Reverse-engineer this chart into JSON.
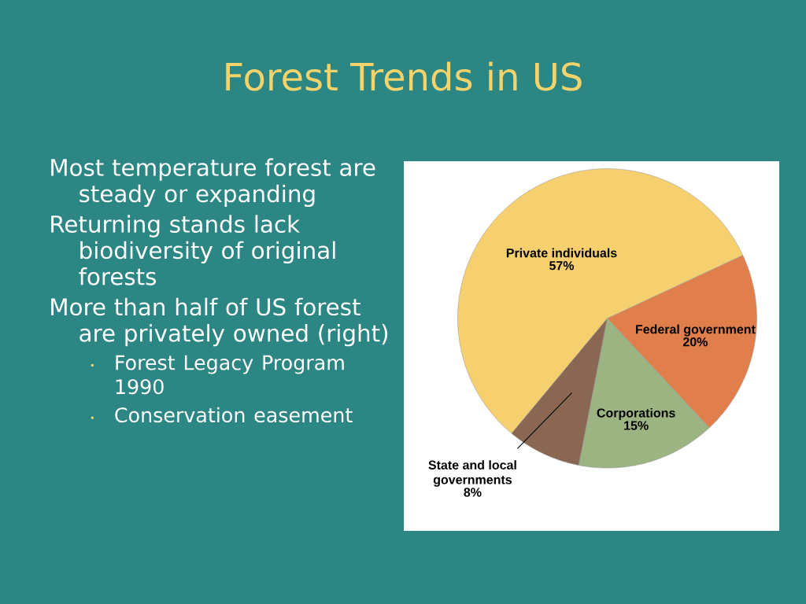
{
  "chart_data": {
    "type": "pie",
    "title": "Forest Trends in US",
    "categories": [
      "Federal government",
      "Corporations",
      "State and local governments",
      "Private individuals"
    ],
    "values": [
      20,
      15,
      8,
      57
    ],
    "value_labels": [
      "20%",
      "15%",
      "8%",
      "57%"
    ],
    "colors": [
      "#e07f4c",
      "#9cb482",
      "#8a6752",
      "#f6cf6e"
    ],
    "annotations": [
      "Most temperature forest are steady or expanding",
      "Returning stands lack biodiversity of original forests",
      "More than half of US forest are privately owned (right)",
      "Forest Legacy Program 1990",
      "Conservation easement"
    ]
  }
}
